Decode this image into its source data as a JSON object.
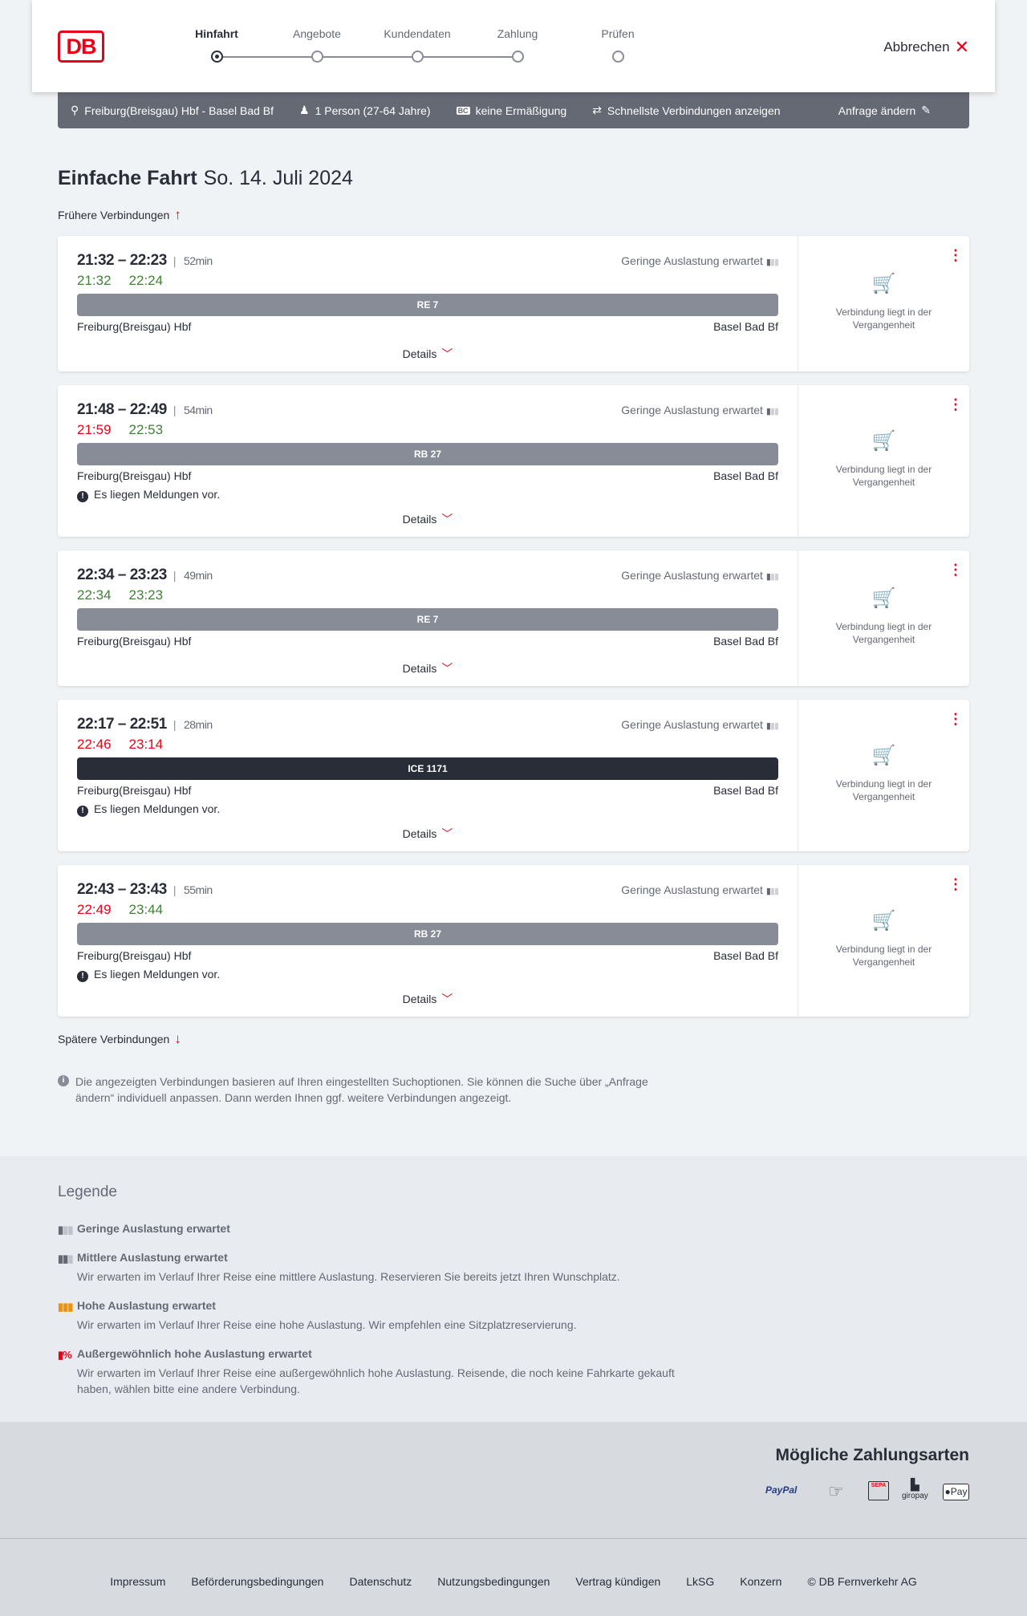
{
  "header": {
    "logo": "DB",
    "steps": [
      "Hinfahrt",
      "Angebote",
      "Kundendaten",
      "Zahlung",
      "Prüfen"
    ],
    "active_step": 0,
    "cancel": "Abbrechen"
  },
  "summary": {
    "route": "Freiburg(Breisgau) Hbf - Basel Bad Bf",
    "persons": "1 Person (27-64 Jahre)",
    "discount": "keine Ermäßigung",
    "fastest": "Schnellste Verbindungen anzeigen",
    "edit": "Anfrage ändern"
  },
  "page": {
    "title": "Einfache Fahrt",
    "date": "So. 14. Juli 2024",
    "earlier": "Frühere Verbindungen",
    "later": "Spätere Verbindungen"
  },
  "connections": [
    {
      "times": "21:32 – 22:23",
      "duration": "52min",
      "rt_dep": "21:32",
      "rt_dep_status": "ontime",
      "rt_arr": "22:24",
      "rt_arr_status": "ontime",
      "load": "Geringe Auslastung erwartet",
      "train": "RE 7",
      "from": "Freiburg(Breisgau) Hbf",
      "to": "Basel Bad Bf",
      "message": "",
      "details": "Details",
      "status": "Verbindung liegt in der Vergangenheit"
    },
    {
      "times": "21:48 – 22:49",
      "duration": "54min",
      "rt_dep": "21:59",
      "rt_dep_status": "delayed",
      "rt_arr": "22:53",
      "rt_arr_status": "ontime",
      "load": "Geringe Auslastung erwartet",
      "train": "RB 27",
      "from": "Freiburg(Breisgau) Hbf",
      "to": "Basel Bad Bf",
      "message": "Es liegen Meldungen vor.",
      "details": "Details",
      "status": "Verbindung liegt in der Vergangenheit"
    },
    {
      "times": "22:34 – 23:23",
      "duration": "49min",
      "rt_dep": "22:34",
      "rt_dep_status": "ontime",
      "rt_arr": "23:23",
      "rt_arr_status": "ontime",
      "load": "Geringe Auslastung erwartet",
      "train": "RE 7",
      "from": "Freiburg(Breisgau) Hbf",
      "to": "Basel Bad Bf",
      "message": "",
      "details": "Details",
      "status": "Verbindung liegt in der Vergangenheit"
    },
    {
      "times": "22:17 – 22:51",
      "duration": "28min",
      "rt_dep": "22:46",
      "rt_dep_status": "delayed",
      "rt_arr": "23:14",
      "rt_arr_status": "delayed",
      "load": "Geringe Auslastung erwartet",
      "train": "ICE 1171",
      "from": "Freiburg(Breisgau) Hbf",
      "to": "Basel Bad Bf",
      "message": "Es liegen Meldungen vor.",
      "details": "Details",
      "status": "Verbindung liegt in der Vergangenheit"
    },
    {
      "times": "22:43 – 23:43",
      "duration": "55min",
      "rt_dep": "22:49",
      "rt_dep_status": "delayed",
      "rt_arr": "23:44",
      "rt_arr_status": "ontime",
      "load": "Geringe Auslastung erwartet",
      "train": "RB 27",
      "from": "Freiburg(Breisgau) Hbf",
      "to": "Basel Bad Bf",
      "message": "Es liegen Meldungen vor.",
      "details": "Details",
      "status": "Verbindung liegt in der Vergangenheit"
    }
  ],
  "info": "Die angezeigten Verbindungen basieren auf Ihren eingestellten Suchoptionen. Sie können die Suche über „Anfrage ändern“ individuell anpassen. Dann werden Ihnen ggf. weitere Verbindungen angezeigt.",
  "legend": {
    "title": "Legende",
    "items": [
      {
        "title": "Geringe Auslastung erwartet",
        "text": "",
        "color": "#646973"
      },
      {
        "title": "Mittlere Auslastung erwartet",
        "text": "Wir erwarten im Verlauf Ihrer Reise eine mittlere Auslastung. Reservieren Sie bereits jetzt Ihren Wunschplatz.",
        "color": "#646973"
      },
      {
        "title": "Hohe Auslastung erwartet",
        "text": "Wir erwarten im Verlauf Ihrer Reise eine hohe Auslastung. Wir empfehlen eine Sitzplatzreservierung.",
        "color": "#f39200"
      },
      {
        "title": "Außergewöhnlich hohe Auslastung erwartet",
        "text": "Wir erwarten im Verlauf Ihrer Reise eine außergewöhnlich hohe Auslastung. Reisende, die noch keine Fahrkarte gekauft haben, wählen bitte eine andere Verbindung.",
        "color": "#ec0016"
      }
    ]
  },
  "payment": {
    "title": "Mögliche Zahlungsarten",
    "methods": [
      "PayPal",
      "Kreditkarte",
      "SEPA",
      "giropay",
      "Pay"
    ]
  },
  "footer": [
    "Impressum",
    "Beförderungsbedingungen",
    "Datenschutz",
    "Nutzungsbedingungen",
    "Vertrag kündigen",
    "LkSG",
    "Konzern",
    "© DB Fernverkehr AG"
  ],
  "colors": {
    "brand": "#ec0016",
    "ontime": "#408335",
    "delayed": "#ec0016"
  }
}
